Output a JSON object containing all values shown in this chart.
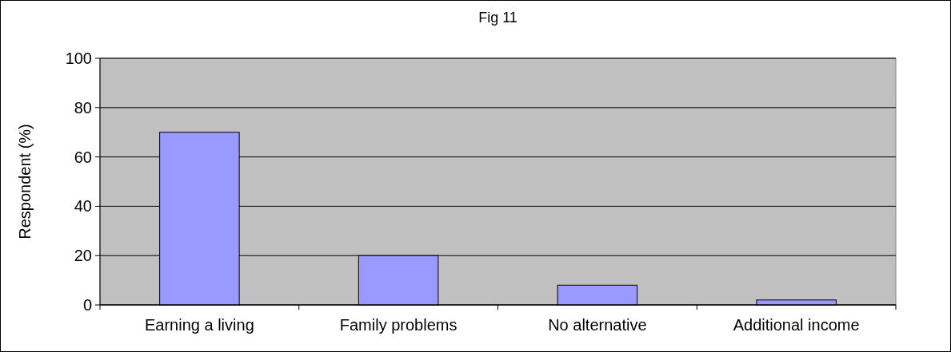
{
  "chart_data": {
    "type": "bar",
    "title": "Fig 11",
    "ylabel": "Respondent (%)",
    "categories": [
      "Earning a living",
      "Family problems",
      "No alternative",
      "Additional income"
    ],
    "values": [
      70,
      20,
      8,
      2
    ],
    "color": "#9999ff",
    "ylim": [
      0,
      100
    ],
    "yticks": [
      0,
      20,
      40,
      60,
      80,
      100
    ],
    "grid": "y"
  }
}
